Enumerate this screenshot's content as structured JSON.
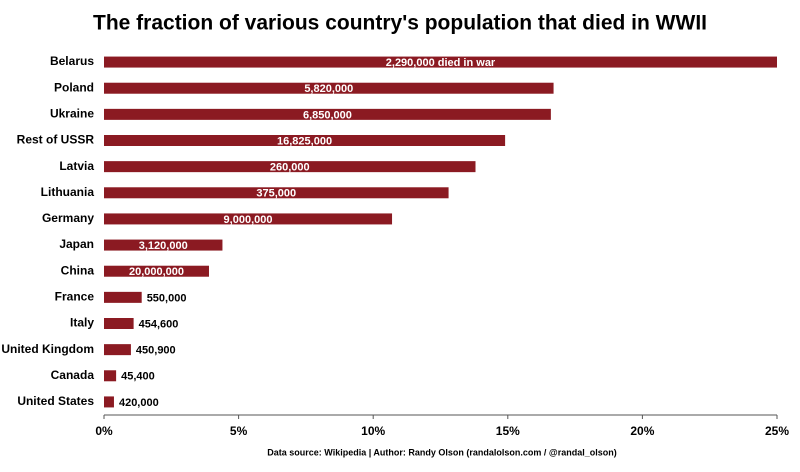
{
  "chart_data": {
    "type": "hbar",
    "title": "The fraction of various country's population that died in WWII",
    "source": "Data source: Wikipedia | Author: Randy Olson (randalolson.com / @randal_olson)",
    "categories": [
      "Belarus",
      "Poland",
      "Ukraine",
      "Rest of USSR",
      "Latvia",
      "Lithuania",
      "Germany",
      "Japan",
      "China",
      "France",
      "Italy",
      "United Kingdom",
      "Canada",
      "United States"
    ],
    "values": [
      25,
      16.7,
      16.6,
      14.9,
      13.8,
      12.8,
      10.7,
      4.4,
      3.9,
      1.4,
      1.1,
      1.0,
      0.45,
      0.37
    ],
    "bar_labels": [
      "2,290,000 died in war",
      "5,820,000",
      "6,850,000",
      "16,825,000",
      "260,000",
      "375,000",
      "9,000,000",
      "3,120,000",
      "20,000,000",
      "550,000",
      "454,600",
      "450,900",
      "45,400",
      "420,000"
    ],
    "color": "#8b1a22",
    "xlim": [
      0,
      25
    ],
    "xticks": [
      {
        "value": 0,
        "label": "0%"
      },
      {
        "value": 5,
        "label": "5%"
      },
      {
        "value": 10,
        "label": "10%"
      },
      {
        "value": 15,
        "label": "15%"
      },
      {
        "value": 20,
        "label": "20%"
      },
      {
        "value": 25,
        "label": "25%"
      }
    ]
  }
}
